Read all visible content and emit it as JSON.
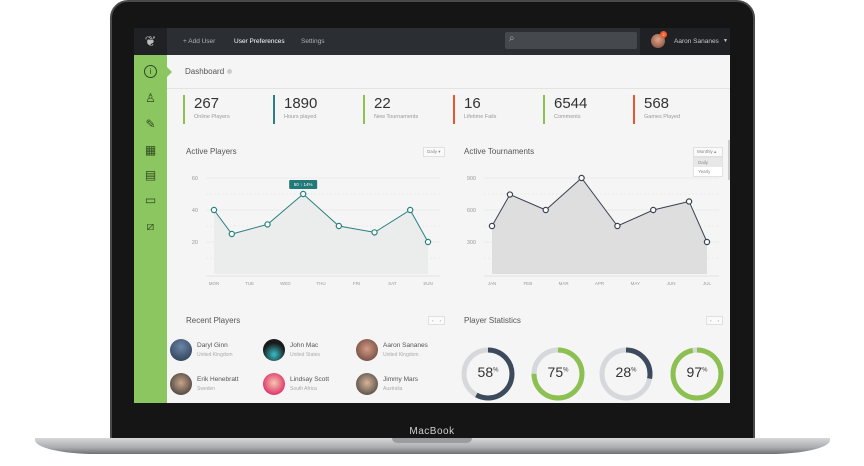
{
  "laptop": {
    "brand": "MacBook"
  },
  "topbar": {
    "logo_icon": "leaf-icon",
    "nav": [
      "+ Add User",
      "User Preferences",
      "Settings"
    ],
    "search_placeholder": "",
    "user": {
      "name": "Aaron Sananes",
      "badge": "2"
    }
  },
  "sidebar": {
    "items": [
      "info-icon",
      "user-icon",
      "pencil-icon",
      "calendar-icon",
      "document-icon",
      "chat-icon",
      "chart-icon"
    ]
  },
  "page": {
    "title": "Dashboard"
  },
  "stats": [
    {
      "value": "267",
      "label": "Online Players",
      "color": "#8cc152"
    },
    {
      "value": "1890",
      "label": "Hours played",
      "color": "#2a7f7f"
    },
    {
      "value": "22",
      "label": "New Tournaments",
      "color": "#8cc152"
    },
    {
      "value": "16",
      "label": "Lifetime Fails",
      "color": "#e8572a"
    },
    {
      "value": "6544",
      "label": "Comments",
      "color": "#8cc152"
    },
    {
      "value": "568",
      "label": "Games Played",
      "color": "#e8572a"
    }
  ],
  "chart_data": [
    {
      "type": "area",
      "title": "Active Players",
      "period": "Daily",
      "categories": [
        "MON",
        "TUE",
        "WED",
        "THU",
        "FRI",
        "SAT",
        "SUN"
      ],
      "x": [
        0,
        0.5,
        1.5,
        2.5,
        3.5,
        4.5,
        5.5,
        6
      ],
      "values": [
        40,
        25,
        31,
        50,
        30,
        26,
        40,
        20
      ],
      "yticks": [
        20,
        40,
        60
      ],
      "ylim": [
        0,
        60
      ],
      "tooltip": {
        "value": "50",
        "change": "↑ 14%"
      },
      "color": "#2a8080"
    },
    {
      "type": "area",
      "title": "Active Tournaments",
      "period": "Monthly",
      "options": [
        "Daily",
        "Yearly"
      ],
      "categories": [
        "JAN",
        "FEB",
        "MAR",
        "APR",
        "MAY",
        "JUN",
        "JUL"
      ],
      "x": [
        0,
        0.5,
        1.5,
        2.5,
        3.5,
        4.5,
        5.5,
        6
      ],
      "values": [
        450,
        745,
        600,
        900,
        450,
        600,
        680,
        300
      ],
      "yticks": [
        300,
        600,
        900
      ],
      "ylim": [
        0,
        900
      ],
      "color": "#3b4350"
    }
  ],
  "recent_players": {
    "title": "Recent Players",
    "players": [
      {
        "name": "Daryl Ginn",
        "country": "United Kingdom"
      },
      {
        "name": "John Mac",
        "country": "United States"
      },
      {
        "name": "Aaron Sananes",
        "country": "United Kingdom"
      },
      {
        "name": "Erik Henebratt",
        "country": "Sweden"
      },
      {
        "name": "Lindsay Scott",
        "country": "South Africa"
      },
      {
        "name": "Jimmy Mars",
        "country": "Australia"
      }
    ]
  },
  "player_statistics": {
    "title": "Player Statistics",
    "items": [
      {
        "value": "58",
        "pct": 58,
        "color": "#3d4a5c"
      },
      {
        "value": "75",
        "pct": 75,
        "color": "#8cc152"
      },
      {
        "value": "28",
        "pct": 28,
        "color": "#3d4a5c"
      },
      {
        "value": "97",
        "pct": 97,
        "color": "#8cc152"
      }
    ],
    "suffix": "%"
  },
  "pager": {
    "prev": "‹",
    "next": "›"
  }
}
